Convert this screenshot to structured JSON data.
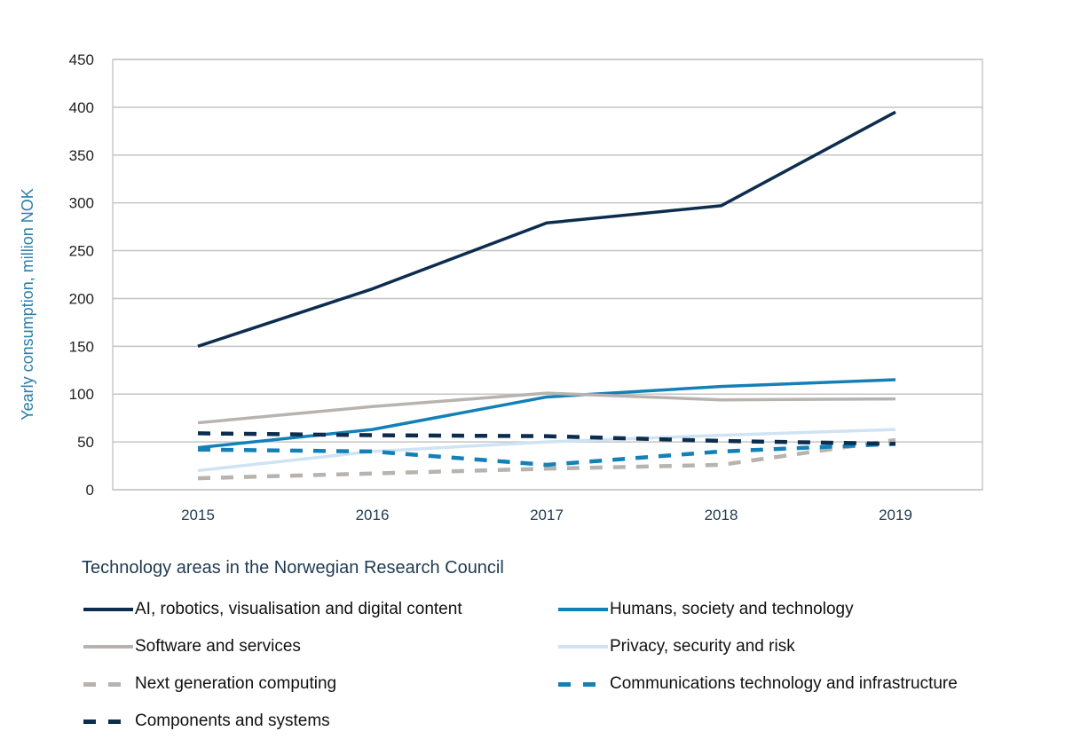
{
  "chart_data": {
    "type": "line",
    "title": "",
    "xlabel": "",
    "ylabel": "Yearly consumption, million NOK",
    "x": [
      "2015",
      "2016",
      "2017",
      "2018",
      "2019"
    ],
    "ylim": [
      0,
      450
    ],
    "yticks": [
      "0",
      "50",
      "100",
      "150",
      "200",
      "250",
      "300",
      "350",
      "400",
      "450"
    ],
    "grid": true,
    "legend_title": "Technology areas in the Norwegian Research Council",
    "legend_placement": "bottom",
    "series": [
      {
        "name": "AI, robotics, visualisation and digital content",
        "values": [
          150,
          210,
          279,
          297,
          395
        ],
        "color": "#0d2d4f",
        "dashed": false
      },
      {
        "name": "Humans, society and technology",
        "values": [
          44,
          63,
          97,
          108,
          115
        ],
        "color": "#1380b8",
        "dashed": false
      },
      {
        "name": "Software and services",
        "values": [
          70,
          87,
          101,
          94,
          95
        ],
        "color": "#b8b3ae",
        "dashed": false
      },
      {
        "name": "Privacy, security and risk",
        "values": [
          20,
          40,
          50,
          57,
          63
        ],
        "color": "#cfe3f3",
        "dashed": false
      },
      {
        "name": "Next generation computing",
        "values": [
          12,
          17,
          22,
          26,
          52
        ],
        "color": "#b8b3ae",
        "dashed": true
      },
      {
        "name": "Communications technology and infrastructure",
        "values": [
          42,
          40,
          26,
          40,
          48
        ],
        "color": "#1380b8",
        "dashed": true
      },
      {
        "name": "Components and systems",
        "values": [
          59,
          57,
          56,
          51,
          48
        ],
        "color": "#0d2d4f",
        "dashed": true
      }
    ]
  }
}
